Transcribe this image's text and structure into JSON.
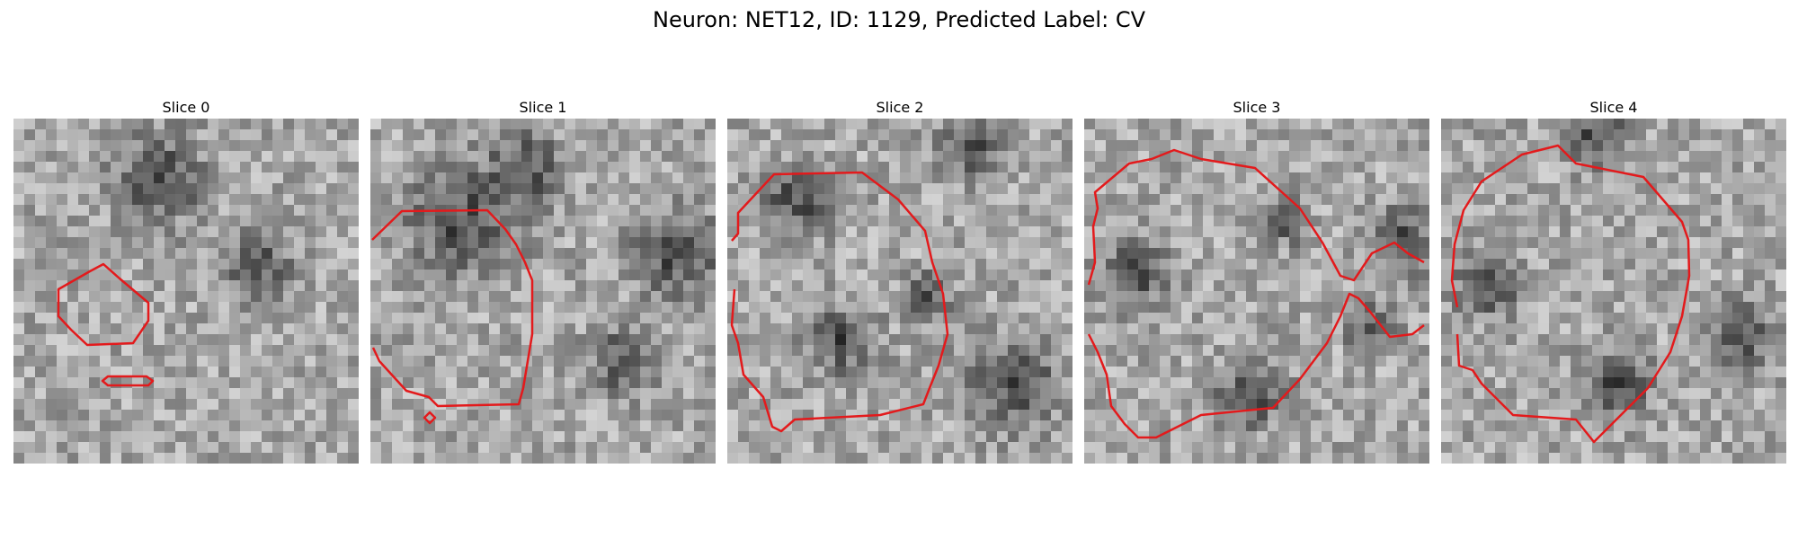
{
  "figure": {
    "title": "Neuron: NET12, ID: 1129, Predicted Label: CV",
    "colormap": "gray",
    "contour_color": "#e31a1c",
    "panels": [
      {
        "label": "Slice 0"
      },
      {
        "label": "Slice 1"
      },
      {
        "label": "Slice 2"
      },
      {
        "label": "Slice 3"
      },
      {
        "label": "Slice 4"
      }
    ]
  }
}
